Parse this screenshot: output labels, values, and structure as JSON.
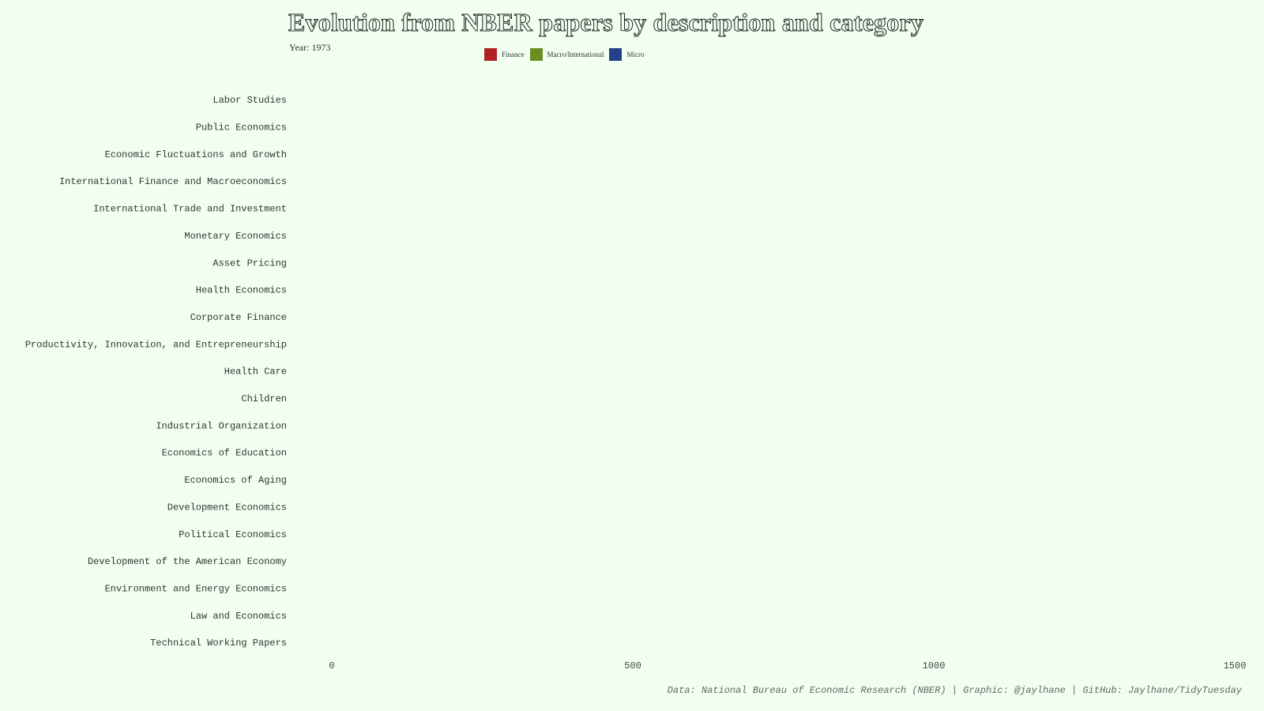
{
  "chart_data": {
    "type": "bar",
    "orientation": "horizontal",
    "title": "Evolution from NBER papers by description and category",
    "subtitle": "Year: 1973",
    "categories": [
      "Labor Studies",
      "Public Economics",
      "Economic Fluctuations and Growth",
      "International Finance and Macroeconomics",
      "International Trade and Investment",
      "Monetary Economics",
      "Asset Pricing",
      "Health Economics",
      "Corporate Finance",
      "Productivity, Innovation, and Entrepreneurship",
      "Health Care",
      "Children",
      "Industrial Organization",
      "Economics of Education",
      "Economics of Aging",
      "Development Economics",
      "Political Economics",
      "Development of the American Economy",
      "Environment and Energy Economics",
      "Law and Economics",
      "Technical Working Papers"
    ],
    "series": [
      {
        "name": "Finance",
        "color": "#b22222",
        "values": [
          0,
          0,
          0,
          0,
          0,
          0,
          0,
          0,
          0,
          0,
          0,
          0,
          0,
          0,
          0,
          0,
          0,
          0,
          0,
          0,
          0
        ]
      },
      {
        "name": "Macro/International",
        "color": "#6b8e23",
        "values": [
          0,
          0,
          0,
          0,
          0,
          0,
          0,
          0,
          0,
          0,
          0,
          0,
          0,
          0,
          0,
          0,
          0,
          0,
          0,
          0,
          0
        ]
      },
      {
        "name": "Micro",
        "color": "#27408b",
        "values": [
          0,
          0,
          0,
          0,
          0,
          0,
          0,
          0,
          0,
          0,
          0,
          0,
          0,
          0,
          0,
          0,
          0,
          0,
          0,
          0,
          0
        ]
      }
    ],
    "xlim": [
      0,
      1500
    ],
    "x_ticks": [
      0,
      500,
      1000,
      1500
    ],
    "grid": false,
    "legend_position": "top"
  },
  "caption": "Data: National Bureau of Economic Research (NBER) | Graphic: @jaylhane | GitHub: Jaylhane/TidyTuesday"
}
